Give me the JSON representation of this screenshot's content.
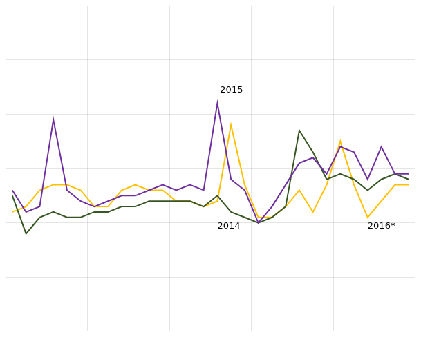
{
  "chart_data": {
    "type": "line",
    "x": [
      0,
      1,
      2,
      3,
      4,
      5,
      6,
      7,
      8,
      9,
      10,
      11,
      12,
      13,
      14,
      15,
      16,
      17,
      18,
      19,
      20,
      21,
      22,
      23,
      24,
      25,
      26,
      27,
      28,
      29
    ],
    "series": [
      {
        "color": "#7030a0",
        "values": [
          56,
          52,
          53,
          69,
          56,
          54,
          53,
          54,
          55,
          55,
          56,
          57,
          56,
          57,
          56,
          72,
          58,
          56,
          50,
          53,
          57,
          61,
          62,
          59,
          64,
          63,
          58,
          64,
          59,
          59
        ]
      },
      {
        "color": "#375623",
        "values": [
          55,
          48,
          51,
          52,
          51,
          51,
          52,
          52,
          53,
          53,
          54,
          54,
          54,
          54,
          53,
          55,
          52,
          51,
          50,
          51,
          53,
          67,
          63,
          58,
          59,
          58,
          56,
          58,
          59,
          58
        ]
      },
      {
        "color": "#ffc000",
        "values": [
          52,
          53,
          56,
          57,
          57,
          56,
          53,
          53,
          56,
          57,
          56,
          56,
          54,
          54,
          53,
          54,
          68,
          57,
          51,
          51,
          53,
          56,
          52,
          57,
          65,
          57,
          51,
          54,
          57,
          57
        ]
      }
    ],
    "annotations": [
      {
        "text": "2015",
        "x": 15.2,
        "y": 74
      },
      {
        "text": "2014",
        "x": 15.0,
        "y": 49
      },
      {
        "text": "2016*",
        "x": 26.0,
        "y": 49
      }
    ],
    "xlim": [
      -0.5,
      29.5
    ],
    "xticks": [
      -0.5,
      5.5,
      11.5,
      17.5,
      23.5,
      29.5
    ],
    "ylim": [
      30,
      90
    ],
    "yticks": [
      30,
      40,
      50,
      60,
      70,
      80,
      90
    ],
    "grid": true,
    "legend": false,
    "tick_labels": false,
    "marker": "none"
  }
}
